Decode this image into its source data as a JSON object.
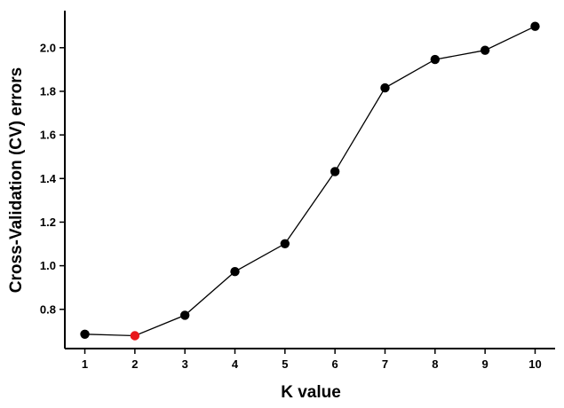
{
  "chart_data": {
    "type": "line",
    "title": "",
    "xlabel": "K value",
    "ylabel": "Cross-Validation (CV) errors",
    "x": [
      1,
      2,
      3,
      4,
      5,
      6,
      7,
      8,
      9,
      10
    ],
    "series": [
      {
        "values": [
          0.686,
          0.679,
          0.773,
          0.973,
          1.101,
          1.432,
          1.816,
          1.946,
          1.988,
          2.098
        ]
      }
    ],
    "highlight": {
      "x": 2,
      "color": "#e8161b"
    },
    "marker_color": "#000000",
    "line_color": "#000000",
    "xticks": [
      1,
      2,
      3,
      4,
      5,
      6,
      7,
      8,
      9,
      10
    ],
    "yticks": [
      "0.8",
      "1.0",
      "1.2",
      "1.4",
      "1.6",
      "1.8",
      "2.0"
    ],
    "xlim": [
      0.6,
      10.4
    ],
    "ylim": [
      0.62,
      2.17
    ],
    "grid": false,
    "legend": "none"
  }
}
